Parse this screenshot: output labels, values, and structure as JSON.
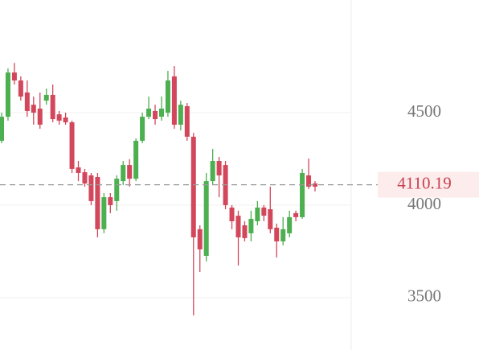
{
  "chart_data": {
    "type": "candlestick",
    "open": [
      4348,
      4478,
      4717,
      4674,
      4609,
      4543,
      4522,
      4565,
      4596,
      4491,
      4474,
      4448,
      4204,
      4178,
      4161,
      4152,
      3870,
      4043,
      4022,
      4130,
      4217,
      4143,
      4348,
      4478,
      4509,
      4478,
      4500,
      4696,
      4435,
      4535,
      4370,
      3870,
      3726,
      4130,
      4239,
      4217,
      3987,
      3943,
      3891,
      3848,
      3913,
      3987,
      3978,
      3878,
      3804,
      3848,
      3957,
      3935,
      4161,
      4117
    ],
    "high": [
      4500,
      4739,
      4769,
      4696,
      4674,
      4587,
      4609,
      4630,
      4652,
      4509,
      4500,
      4457,
      4239,
      4196,
      4174,
      4174,
      4065,
      4065,
      4161,
      4239,
      4248,
      4361,
      4500,
      4587,
      4543,
      4587,
      4726,
      4752,
      4565,
      4552,
      4391,
      3891,
      4174,
      4304,
      4261,
      4239,
      4000,
      3970,
      3913,
      3970,
      4022,
      4000,
      4100,
      3900,
      3935,
      3970,
      3970,
      4196,
      4252,
      4130
    ],
    "low": [
      4335,
      4457,
      4652,
      4565,
      4478,
      4435,
      4413,
      4543,
      4448,
      4435,
      4435,
      4174,
      4130,
      4100,
      4000,
      3826,
      3848,
      3957,
      3970,
      4109,
      4100,
      4130,
      4335,
      4465,
      4435,
      4457,
      4478,
      4413,
      4404,
      4348,
      3404,
      3639,
      3696,
      4109,
      4043,
      3978,
      3870,
      3674,
      3804,
      3804,
      3891,
      3913,
      3848,
      3717,
      3783,
      3826,
      3913,
      3926,
      4087,
      4074
    ],
    "close": [
      4478,
      4717,
      4674,
      4587,
      4509,
      4500,
      4435,
      4596,
      4465,
      4457,
      4448,
      4196,
      4174,
      4117,
      4022,
      3870,
      4043,
      4000,
      4143,
      4217,
      4143,
      4348,
      4478,
      4522,
      4465,
      4522,
      4674,
      4435,
      4543,
      4370,
      3826,
      3761,
      4130,
      4239,
      4161,
      4000,
      3913,
      3826,
      3822,
      3926,
      3987,
      3943,
      3870,
      3804,
      3870,
      3935,
      3935,
      4174,
      4100,
      4100
    ],
    "up_color": "#4caf50",
    "down_color": "#d2475b",
    "last_price": 4110.19,
    "ylim": [
      3217,
      5109
    ],
    "yticks": [
      3500,
      4000,
      4500
    ],
    "grid": true
  }
}
